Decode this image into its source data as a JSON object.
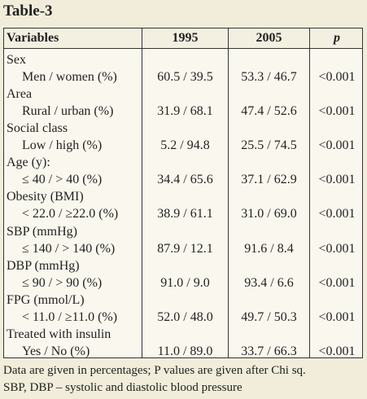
{
  "title": "Table-3",
  "headers": [
    "Variables",
    "1995",
    "2005",
    "p"
  ],
  "rows": [
    {
      "category": "Sex",
      "label": "Men / women (%)",
      "y1995": "60.5 / 39.5",
      "y2005": "53.3 / 46.7",
      "p": "<0.001"
    },
    {
      "category": "Area",
      "label": "Rural / urban (%)",
      "y1995": "31.9 / 68.1",
      "y2005": "47.4 / 52.6",
      "p": "<0.001"
    },
    {
      "category": "Social class",
      "label": "Low / high (%)",
      "y1995": "5.2 / 94.8",
      "y2005": "25.5 / 74.5",
      "p": "<0.001"
    },
    {
      "category": "Age (y):",
      "label": "≤ 40 / > 40 (%)",
      "y1995": "34.4 / 65.6",
      "y2005": "37.1 / 62.9",
      "p": "<0.001"
    },
    {
      "category": "Obesity (BMI)",
      "label": "< 22.0 / ≥22.0 (%)",
      "y1995": "38.9 / 61.1",
      "y2005": "31.0 / 69.0",
      "p": "<0.001"
    },
    {
      "category": "SBP (mmHg)",
      "label": "≤ 140 / > 140 (%)",
      "y1995": "87.9 / 12.1",
      "y2005": "91.6 / 8.4",
      "p": "<0.001"
    },
    {
      "category": "DBP (mmHg)",
      "label": "≤ 90 / > 90 (%)",
      "y1995": "91.0 / 9.0",
      "y2005": "93.4 / 6.6",
      "p": "<0.001"
    },
    {
      "category": "FPG (mmol/L)",
      "label": "< 11.0 / ≥11.0 (%)",
      "y1995": "52.0 / 48.0",
      "y2005": "49.7 / 50.3",
      "p": "<0.001"
    },
    {
      "category": "Treated with insulin",
      "label": "Yes / No (%)",
      "y1995": "11.0 / 89.0",
      "y2005": "33.7 / 66.3",
      "p": "<0.001"
    }
  ],
  "footer": [
    "Data are given in percentages; P values are given after Chi sq.",
    "SBP, DBP – systolic and diastolic blood pressure"
  ]
}
